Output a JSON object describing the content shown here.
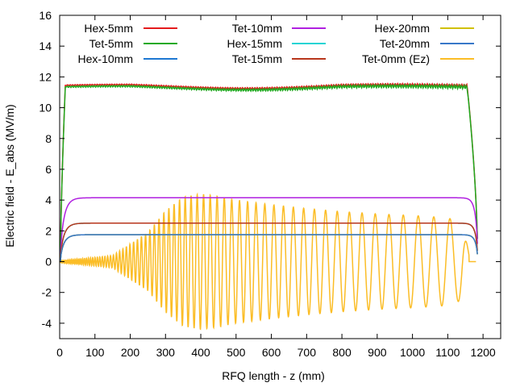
{
  "chart_data": {
    "type": "line",
    "title": "",
    "xlabel": "RFQ length - z (mm)",
    "ylabel": "Electric field - E_abs (MV/m)",
    "xlim": [
      0,
      1250
    ],
    "ylim": [
      -5,
      16
    ],
    "xticks": [
      0,
      100,
      200,
      300,
      400,
      500,
      600,
      700,
      800,
      900,
      1000,
      1100,
      1200
    ],
    "yticks": [
      -4,
      -2,
      0,
      2,
      4,
      6,
      8,
      10,
      12,
      14,
      16
    ],
    "grid": false,
    "legend_position": "top",
    "series": [
      {
        "name": "Hex-5mm",
        "color": "#e41a1c",
        "profile": "plateau",
        "level": 11.45,
        "ripple": 0.08
      },
      {
        "name": "Tet-5mm",
        "color": "#1faa1f",
        "profile": "plateau",
        "level": 11.35,
        "ripple": 0.12
      },
      {
        "name": "Hex-10mm",
        "color": "#1e78d2",
        "profile": "plateau",
        "level": 1.75,
        "ripple": 0
      },
      {
        "name": "Tet-10mm",
        "color": "#b020e0",
        "profile": "plateau",
        "level": 4.15,
        "ripple": 0
      },
      {
        "name": "Hex-15mm",
        "color": "#22d4d4",
        "profile": "plateau",
        "level": 2.5,
        "ripple": 0
      },
      {
        "name": "Tet-15mm",
        "color": "#b8361c",
        "profile": "plateau",
        "level": 2.5,
        "ripple": 0
      },
      {
        "name": "Hex-20mm",
        "color": "#d0c000",
        "profile": "plateau",
        "level": 1.75,
        "ripple": 0
      },
      {
        "name": "Tet-20mm",
        "color": "#3878c8",
        "profile": "plateau",
        "level": 1.75,
        "ripple": 0
      },
      {
        "name": "Tet-0mm (Ez)",
        "color": "#fbbd26",
        "profile": "oscillation",
        "envelope_z": [
          0,
          150,
          250,
          300,
          350,
          400,
          450,
          500,
          600,
          700,
          800,
          900,
          1000,
          1100,
          1140,
          1160
        ],
        "envelope_amp": [
          0.05,
          0.4,
          1.9,
          3.3,
          4.2,
          4.4,
          4.25,
          4.0,
          3.7,
          3.45,
          3.25,
          3.1,
          3.0,
          2.85,
          2.5,
          0.6
        ]
      }
    ]
  }
}
